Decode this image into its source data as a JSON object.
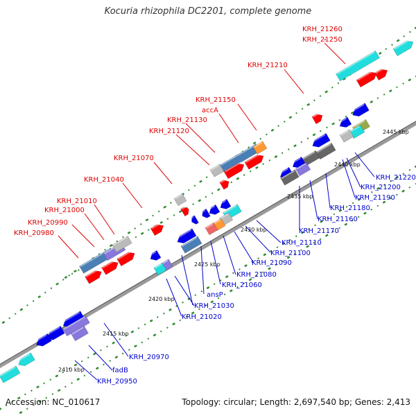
{
  "title": "Kocuria rhizophila DC2201, complete genome",
  "accession": "Accession: NC_010617",
  "summary": "Topology: circular; Length: 2,697,540 bp; Genes: 2,413",
  "colors": {
    "backbone": "#9a9a9a",
    "forward_label": "#dd0000",
    "reverse_label": "#0000cc",
    "tick": "#2f8a2f",
    "red_gene": "#ff0000",
    "blue_gene": "#0000ee",
    "cyan_gene": "#22dddd",
    "steel_gene": "#4a7fb5",
    "purple_gene": "#8877dd",
    "gray_gene": "#bbbbbb",
    "dark_gray_gene": "#666666",
    "salmon_gene": "#ee6666",
    "orange_gene": "#ff9933",
    "olive_gene": "#9aa84a"
  },
  "kbp_labels": [
    "2410 kbp",
    "2415 kbp",
    "2420 kbp",
    "2425 kbp",
    "2430 kbp",
    "2435 kbp",
    "2440 kbp",
    "2445 kbp"
  ],
  "forward_labels": [
    "KRH_21260",
    "KRH_21250",
    "KRH_21210",
    "KRH_21150",
    "accA",
    "KRH_21130",
    "KRH_21120",
    "KRH_21070",
    "KRH_21040",
    "KRH_21010",
    "KRH_21000",
    "KRH_20990",
    "KRH_20980"
  ],
  "reverse_labels": [
    "KRH_21220",
    "KRH_21200",
    "KRH_21190",
    "KRH_21180",
    "KRH_21160",
    "KRH_21170",
    "KRH_21110",
    "KRH_21100",
    "KRH_21090",
    "KRH_21080",
    "KRH_21060",
    "ansP",
    "KRH_21030",
    "KRH_21020",
    "KRH_20970",
    "fadB",
    "KRH_20950"
  ]
}
